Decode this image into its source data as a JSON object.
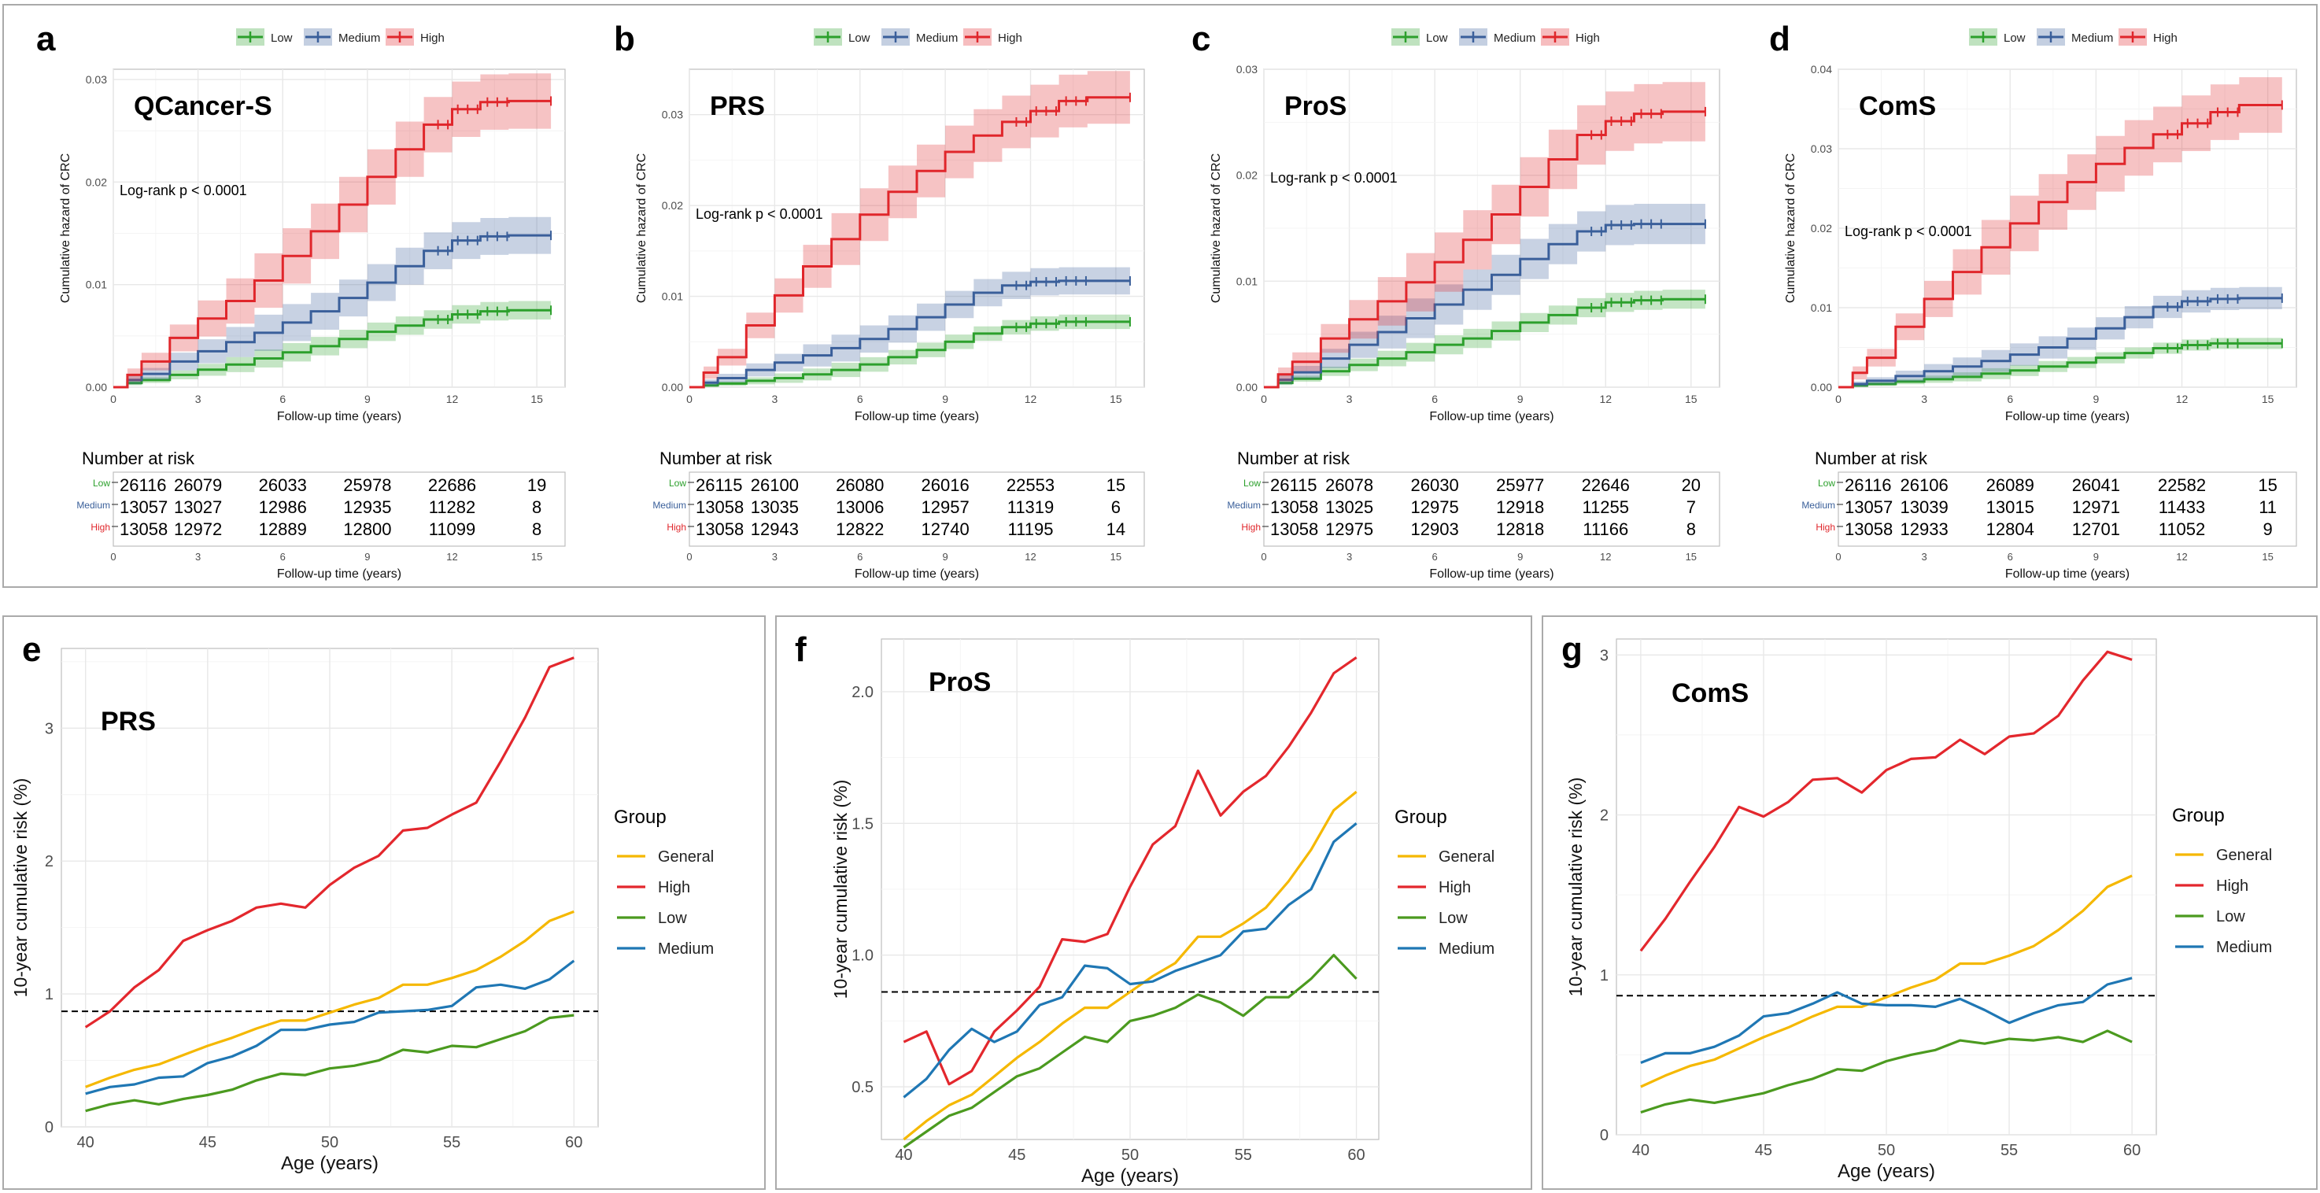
{
  "colors": {
    "low": "#2ca02c",
    "medium": "#3a5f9a",
    "high": "#e0262b",
    "general": "#f5b800",
    "high_line": "#e3272d",
    "low_line": "#4b9a1f",
    "medium_line": "#1f77b4",
    "panel_letter": "#000000"
  },
  "km_common": {
    "legend": [
      "Low",
      "Medium",
      "High"
    ],
    "ylabel": "Cumulative hazard of CRC",
    "xlabel": "Follow-up time (years)",
    "risk_title": "Number at risk",
    "risk_groups": [
      "Low",
      "Medium",
      "High"
    ],
    "xticks": [
      0,
      3,
      6,
      9,
      12,
      15
    ],
    "xlim": [
      0,
      16
    ]
  },
  "lineplot_common": {
    "ylabel": "10-year cumulative risk (%)",
    "xlabel": "Age (years)",
    "legend_title": "Group",
    "legend": [
      "General",
      "High",
      "Low",
      "Medium"
    ],
    "xticks": [
      40,
      45,
      50,
      55,
      60
    ],
    "xlim": [
      40,
      60
    ]
  },
  "chart_data": [
    {
      "panel": "a",
      "type": "line",
      "title": "QCancer-S",
      "annotation": "Log-rank  p < 0.0001",
      "ylim": [
        0,
        0.031
      ],
      "yticks": [
        0,
        0.01,
        0.02,
        0.03
      ],
      "ytick_labels": [
        "0.00",
        "0.01",
        "0.02",
        "0.03"
      ],
      "times": [
        0,
        0.5,
        1,
        2,
        3,
        4,
        5,
        6,
        7,
        8,
        9,
        10,
        11,
        12,
        13,
        14,
        15.5
      ],
      "series": [
        {
          "name": "Low",
          "values": [
            0,
            0.0004,
            0.0007,
            0.0012,
            0.0017,
            0.0022,
            0.0028,
            0.0034,
            0.004,
            0.0047,
            0.0054,
            0.006,
            0.0066,
            0.0071,
            0.0074,
            0.0075,
            0.0075
          ],
          "band": 0.0009
        },
        {
          "name": "Medium",
          "values": [
            0,
            0.0007,
            0.0013,
            0.0025,
            0.0035,
            0.0044,
            0.0053,
            0.0063,
            0.0074,
            0.0087,
            0.0102,
            0.0118,
            0.0133,
            0.0143,
            0.0147,
            0.0148,
            0.0148
          ],
          "band": 0.0018
        },
        {
          "name": "High",
          "values": [
            0,
            0.0012,
            0.0025,
            0.0048,
            0.0067,
            0.0084,
            0.0104,
            0.0128,
            0.0152,
            0.0178,
            0.0205,
            0.0232,
            0.0256,
            0.0271,
            0.0278,
            0.0279,
            0.0279
          ],
          "band": 0.0027
        }
      ],
      "risk": {
        "Low": [
          26116,
          26079,
          26033,
          25978,
          22686,
          19
        ],
        "Medium": [
          13057,
          13027,
          12986,
          12935,
          11282,
          8
        ],
        "High": [
          13058,
          12972,
          12889,
          12800,
          11099,
          8
        ]
      }
    },
    {
      "panel": "b",
      "type": "line",
      "title": "PRS",
      "annotation": "Log-rank  p < 0.0001",
      "ylim": [
        0,
        0.035
      ],
      "yticks": [
        0,
        0.01,
        0.02,
        0.03
      ],
      "ytick_labels": [
        "0.00",
        "0.01",
        "0.02",
        "0.03"
      ],
      "times": [
        0,
        0.5,
        1,
        2,
        3,
        4,
        5,
        6,
        7,
        8,
        9,
        10,
        11,
        12,
        13,
        14,
        15.5
      ],
      "series": [
        {
          "name": "Low",
          "values": [
            0,
            0.0002,
            0.0004,
            0.0007,
            0.001,
            0.0014,
            0.0019,
            0.0025,
            0.0033,
            0.0041,
            0.005,
            0.0059,
            0.0066,
            0.007,
            0.0072,
            0.0072,
            0.0072
          ],
          "band": 0.0008
        },
        {
          "name": "Medium",
          "values": [
            0,
            0.0005,
            0.001,
            0.0019,
            0.0027,
            0.0035,
            0.0043,
            0.0053,
            0.0064,
            0.0077,
            0.0091,
            0.0104,
            0.0112,
            0.0116,
            0.0117,
            0.0117,
            0.0117
          ],
          "band": 0.0015
        },
        {
          "name": "High",
          "values": [
            0,
            0.0016,
            0.0033,
            0.0068,
            0.0101,
            0.0133,
            0.0163,
            0.019,
            0.0215,
            0.0238,
            0.0259,
            0.0277,
            0.0292,
            0.0304,
            0.0315,
            0.0319,
            0.0319
          ],
          "band": 0.0029
        }
      ],
      "risk": {
        "Low": [
          26115,
          26100,
          26080,
          26016,
          22553,
          15
        ],
        "Medium": [
          13058,
          13035,
          13006,
          12957,
          11319,
          6
        ],
        "High": [
          13058,
          12943,
          12822,
          12740,
          11195,
          14
        ]
      }
    },
    {
      "panel": "c",
      "type": "line",
      "title": "ProS",
      "annotation": "Log-rank  p < 0.0001",
      "ylim": [
        0,
        0.03
      ],
      "yticks": [
        0,
        0.01,
        0.02,
        0.03
      ],
      "ytick_labels": [
        "0.00",
        "0.01",
        "0.02",
        "0.03"
      ],
      "times": [
        0,
        0.5,
        1,
        2,
        3,
        4,
        5,
        6,
        7,
        8,
        9,
        10,
        11,
        12,
        13,
        14,
        15.5
      ],
      "series": [
        {
          "name": "Low",
          "values": [
            0,
            0.0004,
            0.0008,
            0.0015,
            0.0021,
            0.0027,
            0.0033,
            0.004,
            0.0046,
            0.0053,
            0.0061,
            0.0068,
            0.0075,
            0.008,
            0.0082,
            0.0083,
            0.0083
          ],
          "band": 0.0009
        },
        {
          "name": "Medium",
          "values": [
            0,
            0.0007,
            0.0014,
            0.0027,
            0.004,
            0.0052,
            0.0065,
            0.0078,
            0.0092,
            0.0106,
            0.0121,
            0.0135,
            0.0147,
            0.0153,
            0.0154,
            0.0154,
            0.0154
          ],
          "band": 0.0019
        },
        {
          "name": "High",
          "values": [
            0,
            0.0012,
            0.0024,
            0.0046,
            0.0064,
            0.0081,
            0.0099,
            0.0118,
            0.0139,
            0.0163,
            0.0189,
            0.0215,
            0.0238,
            0.0251,
            0.0258,
            0.026,
            0.026
          ],
          "band": 0.0028
        }
      ],
      "risk": {
        "Low": [
          26115,
          26078,
          26030,
          25977,
          22646,
          20
        ],
        "Medium": [
          13058,
          13025,
          12975,
          12918,
          11255,
          7
        ],
        "High": [
          13058,
          12975,
          12903,
          12818,
          11166,
          8
        ]
      }
    },
    {
      "panel": "d",
      "type": "line",
      "title": "ComS",
      "annotation": "Log-rank  p < 0.0001",
      "ylim": [
        0,
        0.04
      ],
      "yticks": [
        0,
        0.01,
        0.02,
        0.03,
        0.04
      ],
      "ytick_labels": [
        "0.00",
        "0.01",
        "0.02",
        "0.03",
        "0.04"
      ],
      "times": [
        0,
        0.5,
        1,
        2,
        3,
        4,
        5,
        6,
        7,
        8,
        9,
        10,
        11,
        12,
        13,
        14,
        15.5
      ],
      "series": [
        {
          "name": "Low",
          "values": [
            0,
            0.0002,
            0.0004,
            0.0007,
            0.001,
            0.0013,
            0.0017,
            0.0021,
            0.0026,
            0.0031,
            0.0037,
            0.0043,
            0.0049,
            0.0053,
            0.0055,
            0.0055,
            0.0055
          ],
          "band": 0.0007
        },
        {
          "name": "Medium",
          "values": [
            0,
            0.0004,
            0.0008,
            0.0014,
            0.002,
            0.0026,
            0.0033,
            0.0041,
            0.005,
            0.0061,
            0.0074,
            0.0088,
            0.0101,
            0.0108,
            0.0111,
            0.0112,
            0.0112
          ],
          "band": 0.0014
        },
        {
          "name": "High",
          "values": [
            0,
            0.0018,
            0.0037,
            0.0076,
            0.0111,
            0.0145,
            0.0176,
            0.0206,
            0.0233,
            0.0258,
            0.0281,
            0.0301,
            0.0318,
            0.0332,
            0.0346,
            0.0355,
            0.0355
          ],
          "band": 0.0035
        }
      ],
      "risk": {
        "Low": [
          26116,
          26106,
          26089,
          26041,
          22582,
          15
        ],
        "Medium": [
          13057,
          13039,
          13015,
          12971,
          11433,
          11
        ],
        "High": [
          13058,
          12933,
          12804,
          12701,
          11052,
          9
        ]
      }
    },
    {
      "panel": "e",
      "type": "line",
      "title": "PRS",
      "x": [
        40,
        41,
        42,
        43,
        44,
        45,
        46,
        47,
        48,
        49,
        50,
        51,
        52,
        53,
        54,
        55,
        56,
        57,
        58,
        59,
        60
      ],
      "ylim": [
        0,
        3.6
      ],
      "yticks": [
        0,
        1,
        2,
        3
      ],
      "ytick_labels": [
        "0",
        "1",
        "2",
        "3"
      ],
      "reference_line": 0.87,
      "series": [
        {
          "name": "General",
          "values": [
            0.3,
            0.37,
            0.43,
            0.47,
            0.54,
            0.61,
            0.67,
            0.74,
            0.8,
            0.8,
            0.86,
            0.92,
            0.97,
            1.07,
            1.07,
            1.12,
            1.18,
            1.28,
            1.4,
            1.55,
            1.62
          ]
        },
        {
          "name": "High",
          "values": [
            0.75,
            0.87,
            1.05,
            1.18,
            1.4,
            1.48,
            1.55,
            1.65,
            1.68,
            1.65,
            1.82,
            1.95,
            2.04,
            2.23,
            2.25,
            2.35,
            2.44,
            2.75,
            3.08,
            3.46,
            3.53
          ]
        },
        {
          "name": "Low",
          "values": [
            0.12,
            0.17,
            0.2,
            0.17,
            0.21,
            0.24,
            0.28,
            0.35,
            0.4,
            0.39,
            0.44,
            0.46,
            0.5,
            0.58,
            0.56,
            0.61,
            0.6,
            0.66,
            0.72,
            0.82,
            0.84
          ]
        },
        {
          "name": "Medium",
          "values": [
            0.25,
            0.3,
            0.32,
            0.37,
            0.38,
            0.48,
            0.53,
            0.61,
            0.73,
            0.73,
            0.77,
            0.79,
            0.86,
            0.87,
            0.88,
            0.91,
            1.05,
            1.07,
            1.04,
            1.11,
            1.25
          ]
        }
      ]
    },
    {
      "panel": "f",
      "type": "line",
      "title": "ProS",
      "x": [
        40,
        41,
        42,
        43,
        44,
        45,
        46,
        47,
        48,
        49,
        50,
        51,
        52,
        53,
        54,
        55,
        56,
        57,
        58,
        59,
        60
      ],
      "ylim": [
        0.3,
        2.2
      ],
      "yticks": [
        0.5,
        1.0,
        1.5,
        2.0
      ],
      "ytick_labels": [
        "0.5",
        "1.0",
        "1.5",
        "2.0"
      ],
      "reference_line": 0.86,
      "series": [
        {
          "name": "General",
          "values": [
            0.3,
            0.37,
            0.43,
            0.47,
            0.54,
            0.61,
            0.67,
            0.74,
            0.8,
            0.8,
            0.86,
            0.92,
            0.97,
            1.07,
            1.07,
            1.12,
            1.18,
            1.28,
            1.4,
            1.55,
            1.62
          ]
        },
        {
          "name": "High",
          "values": [
            0.67,
            0.71,
            0.51,
            0.56,
            0.71,
            0.79,
            0.88,
            1.06,
            1.05,
            1.08,
            1.26,
            1.42,
            1.49,
            1.7,
            1.53,
            1.62,
            1.68,
            1.79,
            1.92,
            2.07,
            2.13
          ]
        },
        {
          "name": "Low",
          "values": [
            0.27,
            0.33,
            0.39,
            0.42,
            0.48,
            0.54,
            0.57,
            0.63,
            0.69,
            0.67,
            0.75,
            0.77,
            0.8,
            0.85,
            0.82,
            0.77,
            0.84,
            0.84,
            0.91,
            1.0,
            0.91
          ]
        },
        {
          "name": "Medium",
          "values": [
            0.46,
            0.53,
            0.64,
            0.72,
            0.67,
            0.71,
            0.81,
            0.84,
            0.96,
            0.95,
            0.89,
            0.9,
            0.94,
            0.97,
            1.0,
            1.09,
            1.1,
            1.19,
            1.25,
            1.43,
            1.5
          ]
        }
      ]
    },
    {
      "panel": "g",
      "type": "line",
      "title": "ComS",
      "x": [
        40,
        41,
        42,
        43,
        44,
        45,
        46,
        47,
        48,
        49,
        50,
        51,
        52,
        53,
        54,
        55,
        56,
        57,
        58,
        59,
        60
      ],
      "ylim": [
        0,
        3.1
      ],
      "yticks": [
        0,
        1,
        2,
        3
      ],
      "ytick_labels": [
        "0",
        "1",
        "2",
        "3"
      ],
      "reference_line": 0.87,
      "series": [
        {
          "name": "General",
          "values": [
            0.3,
            0.37,
            0.43,
            0.47,
            0.54,
            0.61,
            0.67,
            0.74,
            0.8,
            0.8,
            0.86,
            0.92,
            0.97,
            1.07,
            1.07,
            1.12,
            1.18,
            1.28,
            1.4,
            1.55,
            1.62
          ]
        },
        {
          "name": "High",
          "values": [
            1.15,
            1.35,
            1.58,
            1.8,
            2.05,
            1.99,
            2.08,
            2.22,
            2.23,
            2.14,
            2.28,
            2.35,
            2.36,
            2.47,
            2.38,
            2.49,
            2.51,
            2.62,
            2.84,
            3.02,
            2.97
          ]
        },
        {
          "name": "Low",
          "values": [
            0.14,
            0.19,
            0.22,
            0.2,
            0.23,
            0.26,
            0.31,
            0.35,
            0.41,
            0.4,
            0.46,
            0.5,
            0.53,
            0.59,
            0.57,
            0.6,
            0.59,
            0.61,
            0.58,
            0.65,
            0.58
          ]
        },
        {
          "name": "Medium",
          "values": [
            0.45,
            0.51,
            0.51,
            0.55,
            0.62,
            0.74,
            0.76,
            0.82,
            0.89,
            0.82,
            0.81,
            0.81,
            0.8,
            0.85,
            0.78,
            0.7,
            0.76,
            0.81,
            0.83,
            0.94,
            0.98
          ]
        }
      ]
    }
  ]
}
